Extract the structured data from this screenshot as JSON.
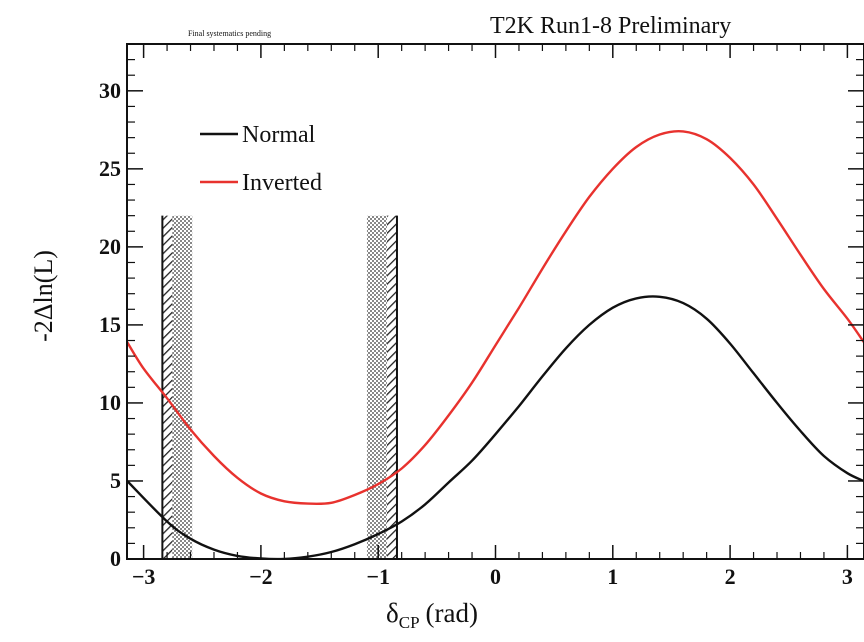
{
  "chart_data": {
    "type": "line",
    "title": "T2K Run1-8 Preliminary",
    "subtitle": "Final systematics pending",
    "xlabel_main": "δ",
    "xlabel_sub": "CP",
    "xlabel_unit": "(rad)",
    "ylabel": "-2Δln(L)",
    "xlim": [
      -3.14159,
      3.14159
    ],
    "ylim": [
      0,
      33
    ],
    "x_ticks": [
      -3,
      -2,
      -1,
      0,
      1,
      2,
      3
    ],
    "x_tick_labels": [
      "−3",
      "−2",
      "−1",
      "0",
      "1",
      "2",
      "3"
    ],
    "y_ticks": [
      0,
      5,
      10,
      15,
      20,
      25,
      30
    ],
    "y_tick_labels": [
      "0",
      "5",
      "10",
      "15",
      "20",
      "25",
      "30"
    ],
    "legend_position": "top-left",
    "confidence_interval": {
      "low": -2.84,
      "high": -0.84,
      "band_top": 22
    },
    "series": [
      {
        "name": "Normal",
        "color": "#111111",
        "x": [
          -3.14,
          -2.8,
          -2.6,
          -2.4,
          -2.2,
          -2.0,
          -1.8,
          -1.6,
          -1.4,
          -1.2,
          -1.0,
          -0.8,
          -0.6,
          -0.4,
          -0.2,
          0.0,
          0.2,
          0.4,
          0.6,
          0.8,
          1.0,
          1.2,
          1.4,
          1.6,
          1.8,
          2.0,
          2.2,
          2.4,
          2.6,
          2.8,
          3.0,
          3.14
        ],
        "y": [
          5.0,
          2.4,
          1.3,
          0.6,
          0.2,
          0.03,
          0.0,
          0.15,
          0.45,
          0.95,
          1.6,
          2.4,
          3.5,
          4.9,
          6.3,
          8.0,
          9.8,
          11.7,
          13.5,
          15.0,
          16.1,
          16.7,
          16.8,
          16.4,
          15.4,
          13.8,
          11.9,
          10.0,
          8.2,
          6.6,
          5.5,
          5.0
        ]
      },
      {
        "name": "Inverted",
        "color": "#e8322e",
        "x": [
          -3.14,
          -3.0,
          -2.8,
          -2.6,
          -2.4,
          -2.2,
          -2.0,
          -1.8,
          -1.6,
          -1.4,
          -1.2,
          -1.0,
          -0.8,
          -0.6,
          -0.4,
          -0.2,
          0.0,
          0.2,
          0.4,
          0.6,
          0.8,
          1.0,
          1.2,
          1.4,
          1.6,
          1.8,
          2.0,
          2.2,
          2.4,
          2.6,
          2.8,
          3.0,
          3.14
        ],
        "y": [
          13.9,
          12.2,
          10.3,
          8.3,
          6.6,
          5.2,
          4.2,
          3.7,
          3.55,
          3.6,
          4.1,
          4.8,
          5.8,
          7.3,
          9.2,
          11.3,
          13.7,
          16.1,
          18.6,
          21.0,
          23.2,
          25.0,
          26.4,
          27.2,
          27.4,
          26.9,
          25.7,
          24.0,
          21.8,
          19.5,
          17.3,
          15.4,
          13.9
        ]
      }
    ]
  }
}
